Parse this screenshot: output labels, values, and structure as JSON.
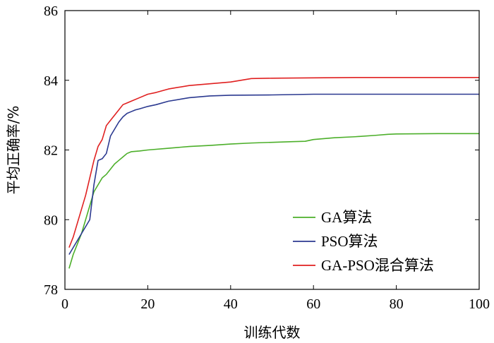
{
  "chart_data": {
    "type": "line",
    "xlabel": "训练代数",
    "ylabel": "平均正确率/%",
    "xlim": [
      0,
      100
    ],
    "ylim": [
      78,
      86
    ],
    "xticks": [
      0,
      20,
      40,
      60,
      80,
      100
    ],
    "yticks": [
      78,
      80,
      82,
      84,
      86
    ],
    "grid": false,
    "legend_position": "bottom-right",
    "series": [
      {
        "name": "GA算法",
        "color": "#4caf2a",
        "points": [
          [
            1,
            78.6
          ],
          [
            2,
            79.0
          ],
          [
            3,
            79.3
          ],
          [
            4,
            79.6
          ],
          [
            5,
            80.0
          ],
          [
            6,
            80.4
          ],
          [
            7,
            80.8
          ],
          [
            8,
            81.0
          ],
          [
            9,
            81.2
          ],
          [
            10,
            81.3
          ],
          [
            11,
            81.45
          ],
          [
            12,
            81.6
          ],
          [
            13,
            81.7
          ],
          [
            14,
            81.8
          ],
          [
            15,
            81.9
          ],
          [
            16,
            81.95
          ],
          [
            18,
            81.97
          ],
          [
            20,
            82.0
          ],
          [
            25,
            82.05
          ],
          [
            30,
            82.1
          ],
          [
            35,
            82.13
          ],
          [
            40,
            82.17
          ],
          [
            45,
            82.2
          ],
          [
            50,
            82.22
          ],
          [
            55,
            82.24
          ],
          [
            58,
            82.25
          ],
          [
            60,
            82.3
          ],
          [
            65,
            82.35
          ],
          [
            70,
            82.38
          ],
          [
            75,
            82.42
          ],
          [
            78,
            82.45
          ],
          [
            80,
            82.46
          ],
          [
            90,
            82.47
          ],
          [
            100,
            82.47
          ]
        ]
      },
      {
        "name": "PSO算法",
        "color": "#2b3990",
        "points": [
          [
            1,
            79.0
          ],
          [
            2,
            79.2
          ],
          [
            3,
            79.4
          ],
          [
            4,
            79.6
          ],
          [
            5,
            79.8
          ],
          [
            6,
            80.0
          ],
          [
            7,
            81.0
          ],
          [
            8,
            81.7
          ],
          [
            9,
            81.75
          ],
          [
            10,
            81.9
          ],
          [
            11,
            82.4
          ],
          [
            12,
            82.6
          ],
          [
            13,
            82.8
          ],
          [
            14,
            82.95
          ],
          [
            15,
            83.05
          ],
          [
            16,
            83.1
          ],
          [
            17,
            83.15
          ],
          [
            18,
            83.18
          ],
          [
            20,
            83.25
          ],
          [
            22,
            83.3
          ],
          [
            25,
            83.4
          ],
          [
            30,
            83.5
          ],
          [
            35,
            83.55
          ],
          [
            40,
            83.57
          ],
          [
            50,
            83.58
          ],
          [
            60,
            83.6
          ],
          [
            70,
            83.6
          ],
          [
            80,
            83.6
          ],
          [
            90,
            83.6
          ],
          [
            100,
            83.6
          ]
        ]
      },
      {
        "name": "GA-PSO混合算法",
        "color": "#e02020",
        "points": [
          [
            1,
            79.2
          ],
          [
            2,
            79.5
          ],
          [
            3,
            79.9
          ],
          [
            4,
            80.3
          ],
          [
            5,
            80.7
          ],
          [
            6,
            81.2
          ],
          [
            7,
            81.7
          ],
          [
            8,
            82.1
          ],
          [
            9,
            82.3
          ],
          [
            10,
            82.7
          ],
          [
            11,
            82.85
          ],
          [
            12,
            83.0
          ],
          [
            13,
            83.15
          ],
          [
            14,
            83.3
          ],
          [
            15,
            83.35
          ],
          [
            16,
            83.4
          ],
          [
            18,
            83.5
          ],
          [
            20,
            83.6
          ],
          [
            22,
            83.65
          ],
          [
            25,
            83.75
          ],
          [
            30,
            83.85
          ],
          [
            35,
            83.9
          ],
          [
            40,
            83.95
          ],
          [
            45,
            84.05
          ],
          [
            50,
            84.06
          ],
          [
            60,
            84.07
          ],
          [
            70,
            84.08
          ],
          [
            80,
            84.08
          ],
          [
            90,
            84.08
          ],
          [
            100,
            84.08
          ]
        ]
      }
    ]
  }
}
